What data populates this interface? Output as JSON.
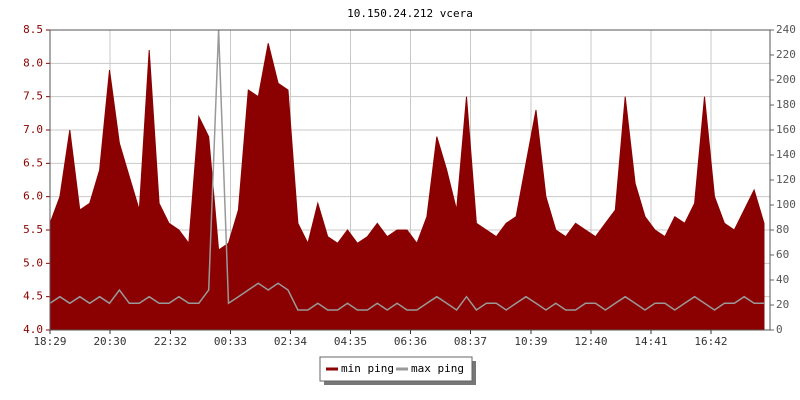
{
  "chart_data": {
    "type": "area",
    "title": "10.150.24.212 vcera",
    "x": [
      0,
      20,
      40,
      60,
      80,
      100,
      120,
      140,
      160,
      180,
      200,
      220,
      240,
      260,
      280,
      300,
      320,
      340,
      360,
      380,
      400,
      420,
      440,
      460,
      480,
      500,
      520,
      540,
      560,
      580,
      600,
      620,
      640,
      660,
      680,
      700,
      720,
      740,
      760,
      780,
      800,
      820,
      840,
      860,
      880,
      900,
      920,
      940,
      960,
      980,
      1000,
      1020,
      1040,
      1060,
      1080,
      1100,
      1120,
      1140,
      1160,
      1180,
      1200,
      1220,
      1240,
      1260,
      1280,
      1300,
      1320,
      1340,
      1360,
      1380,
      1400,
      1420,
      1440
    ],
    "series": [
      {
        "name": "min ping",
        "color": "#8b0000",
        "values": [
          5.6,
          6.0,
          7.0,
          5.8,
          5.9,
          6.4,
          7.9,
          6.8,
          6.3,
          5.8,
          8.2,
          5.9,
          5.6,
          5.5,
          5.3,
          7.2,
          6.9,
          5.2,
          5.3,
          5.8,
          7.6,
          7.5,
          8.3,
          7.7,
          7.6,
          5.6,
          5.3,
          5.9,
          5.4,
          5.3,
          5.5,
          5.3,
          5.4,
          5.6,
          5.4,
          5.5,
          5.5,
          5.3,
          5.7,
          6.9,
          6.4,
          5.8,
          7.5,
          5.6,
          5.5,
          5.4,
          5.6,
          5.7,
          6.5,
          7.3,
          6.0,
          5.5,
          5.4,
          5.6,
          5.5,
          5.4,
          5.6,
          5.8,
          7.5,
          6.2,
          5.7,
          5.5,
          5.4,
          5.7,
          5.6,
          5.9,
          7.5,
          6.0,
          5.6,
          5.5,
          5.8,
          6.1,
          5.6
        ]
      },
      {
        "name": "max ping",
        "color": "#999999",
        "values": [
          4.4,
          4.5,
          4.4,
          4.5,
          4.4,
          4.5,
          4.4,
          4.6,
          4.4,
          4.4,
          4.5,
          4.4,
          4.4,
          4.5,
          4.4,
          4.4,
          4.6,
          8.5,
          4.4,
          4.5,
          4.6,
          4.7,
          4.6,
          4.7,
          4.6,
          4.3,
          4.3,
          4.4,
          4.3,
          4.3,
          4.4,
          4.3,
          4.3,
          4.4,
          4.3,
          4.4,
          4.3,
          4.3,
          4.4,
          4.5,
          4.4,
          4.3,
          4.5,
          4.3,
          4.4,
          4.4,
          4.3,
          4.4,
          4.5,
          4.4,
          4.3,
          4.4,
          4.3,
          4.3,
          4.4,
          4.4,
          4.3,
          4.4,
          4.5,
          4.4,
          4.3,
          4.4,
          4.4,
          4.3,
          4.4,
          4.5,
          4.4,
          4.3,
          4.4,
          4.4,
          4.5,
          4.4,
          4.4
        ]
      }
    ],
    "xlim": [
      0,
      1452
    ],
    "xticks": [
      {
        "value": 0,
        "label": "18:29"
      },
      {
        "value": 121,
        "label": "20:30"
      },
      {
        "value": 243,
        "label": "22:32"
      },
      {
        "value": 364,
        "label": "00:33"
      },
      {
        "value": 485,
        "label": "02:34"
      },
      {
        "value": 606,
        "label": "04:35"
      },
      {
        "value": 727,
        "label": "06:36"
      },
      {
        "value": 848,
        "label": "08:37"
      },
      {
        "value": 970,
        "label": "10:39"
      },
      {
        "value": 1091,
        "label": "12:40"
      },
      {
        "value": 1212,
        "label": "14:41"
      },
      {
        "value": 1333,
        "label": "16:42"
      }
    ],
    "ylim": [
      4,
      8.5
    ],
    "yticks": [
      {
        "value": 4,
        "label": "4.0"
      },
      4.5,
      {
        "value": 5,
        "label": "5.0"
      },
      5.5,
      {
        "value": 6,
        "label": "6.0"
      },
      6.5,
      {
        "value": 7,
        "label": "7.0"
      },
      7.5,
      {
        "value": 8,
        "label": "8.0"
      },
      8.5
    ],
    "y2lim": [
      0,
      240
    ],
    "y2ticks": [
      0,
      20,
      40,
      60,
      80,
      100,
      120,
      140,
      160,
      180,
      200,
      220,
      240
    ],
    "grid": true
  }
}
